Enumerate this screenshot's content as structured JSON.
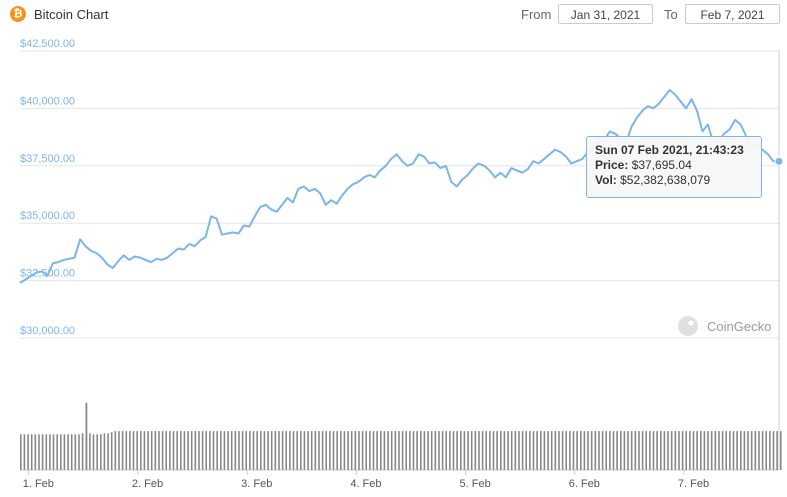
{
  "header": {
    "title": "Bitcoin Chart",
    "from_label": "From",
    "from_value": "Jan 31, 2021",
    "to_label": "To",
    "to_value": "Feb 7, 2021"
  },
  "tooltip": {
    "date": "Sun 07 Feb 2021, 21:43:23",
    "price_label": "Price:",
    "price_value": "$37,695.04",
    "vol_label": "Vol:",
    "vol_value": "$52,382,638,079"
  },
  "watermark": "CoinGecko",
  "colors": {
    "line": "#7cb5ec",
    "volume": "#888888",
    "grid": "#e6e6e6",
    "brand": "#f7931a"
  },
  "chart_data": [
    {
      "type": "line",
      "title": "Bitcoin Chart",
      "y_tick_labels": [
        "$30,000.00",
        "$32,500.00",
        "$35,000.00",
        "$37,500.00",
        "$40,000.00",
        "$42,500.00"
      ],
      "y_ticks": [
        30000,
        32500,
        35000,
        37500,
        40000,
        42500
      ],
      "ylim": [
        30000,
        42500
      ],
      "x_tick_labels": [
        "1. Feb",
        "2. Feb",
        "3. Feb",
        "4. Feb",
        "5. Feb",
        "6. Feb",
        "7. Feb"
      ],
      "x_ticks": [
        1,
        2,
        3,
        4,
        5,
        6,
        7
      ],
      "xlim": [
        0.92,
        7.88
      ],
      "grid": true,
      "series": [
        {
          "x": [
            0.92,
            0.97,
            1.02,
            1.07,
            1.12,
            1.17,
            1.22,
            1.27,
            1.32,
            1.37,
            1.42,
            1.47,
            1.52,
            1.57,
            1.62,
            1.67,
            1.72,
            1.77,
            1.82,
            1.87,
            1.92,
            1.97,
            2.02,
            2.07,
            2.12,
            2.17,
            2.22,
            2.27,
            2.32,
            2.37,
            2.42,
            2.47,
            2.52,
            2.57,
            2.62,
            2.67,
            2.72,
            2.77,
            2.82,
            2.87,
            2.92,
            2.97,
            3.02,
            3.07,
            3.12,
            3.17,
            3.22,
            3.27,
            3.32,
            3.37,
            3.42,
            3.47,
            3.52,
            3.57,
            3.62,
            3.67,
            3.72,
            3.77,
            3.82,
            3.87,
            3.92,
            3.97,
            4.02,
            4.07,
            4.12,
            4.17,
            4.22,
            4.27,
            4.32,
            4.37,
            4.42,
            4.47,
            4.52,
            4.57,
            4.62,
            4.67,
            4.72,
            4.77,
            4.82,
            4.87,
            4.92,
            4.97,
            5.02,
            5.07,
            5.12,
            5.17,
            5.22,
            5.27,
            5.32,
            5.37,
            5.42,
            5.47,
            5.52,
            5.57,
            5.62,
            5.67,
            5.72,
            5.77,
            5.82,
            5.87,
            5.92,
            5.97,
            6.02,
            6.07,
            6.12,
            6.17,
            6.22,
            6.27,
            6.32,
            6.37,
            6.42,
            6.47,
            6.52,
            6.57,
            6.62,
            6.67,
            6.72,
            6.77,
            6.82,
            6.87,
            6.92,
            6.97,
            7.02,
            7.07,
            7.12,
            7.17,
            7.22,
            7.27,
            7.32,
            7.37,
            7.42,
            7.47,
            7.52,
            7.57,
            7.62,
            7.67,
            7.72,
            7.77,
            7.82,
            7.88
          ],
          "y": [
            32400,
            32550,
            32700,
            32850,
            32900,
            32700,
            33250,
            33300,
            33400,
            33450,
            33500,
            34300,
            34000,
            33800,
            33700,
            33500,
            33200,
            33050,
            33350,
            33600,
            33400,
            33550,
            33500,
            33400,
            33300,
            33450,
            33400,
            33500,
            33700,
            33900,
            33850,
            34100,
            34000,
            34250,
            34400,
            35300,
            35200,
            34500,
            34550,
            34600,
            34550,
            34900,
            34850,
            35300,
            35700,
            35800,
            35600,
            35500,
            35800,
            36100,
            35900,
            36500,
            36600,
            36400,
            36500,
            36300,
            35800,
            36000,
            35850,
            36200,
            36500,
            36700,
            36800,
            37000,
            37100,
            37000,
            37300,
            37500,
            37800,
            38000,
            37700,
            37500,
            37600,
            38000,
            37900,
            37600,
            37650,
            37400,
            37500,
            36800,
            36600,
            36900,
            37100,
            37400,
            37600,
            37500,
            37300,
            37000,
            37200,
            37000,
            37400,
            37300,
            37200,
            37350,
            37700,
            37600,
            37800,
            38000,
            38200,
            38100,
            37900,
            37600,
            37700,
            37800,
            38100,
            38300,
            38500,
            38600,
            39000,
            38900,
            38700,
            38500,
            39200,
            39600,
            39900,
            40100,
            40000,
            40200,
            40500,
            40800,
            40600,
            40300,
            40000,
            40400,
            39900,
            39000,
            39300,
            38500,
            38600,
            38900,
            39100,
            39500,
            39300,
            38800,
            38300,
            38400,
            38200,
            38000,
            37700,
            37695
          ]
        }
      ]
    },
    {
      "type": "bar",
      "title": "",
      "note": "volume bars",
      "x_start": 0.92,
      "x_step": 0.0333,
      "values": [
        0.34,
        0.34,
        0.34,
        0.34,
        0.34,
        0.34,
        0.34,
        0.34,
        0.34,
        0.34,
        0.34,
        0.34,
        0.34,
        0.34,
        0.34,
        0.34,
        0.34,
        0.35,
        0.34,
        0.35,
        0.34,
        0.34,
        0.34,
        0.35,
        0.35,
        0.36,
        0.37,
        0.37,
        0.37,
        0.37,
        0.37,
        0.37,
        0.37,
        0.37,
        0.37,
        0.37,
        0.37,
        0.37,
        0.37,
        0.37,
        0.37,
        0.37,
        0.37,
        0.37,
        0.37,
        0.37,
        0.37,
        0.37,
        0.37,
        0.37,
        0.37,
        0.37,
        0.37,
        0.37,
        0.37,
        0.37,
        0.37,
        0.37,
        0.37,
        0.37,
        0.37,
        0.37,
        0.37,
        0.37,
        0.37,
        0.37,
        0.37,
        0.37,
        0.37,
        0.37,
        0.37,
        0.37,
        0.37,
        0.37,
        0.37,
        0.37,
        0.37,
        0.37,
        0.37,
        0.37,
        0.37,
        0.37,
        0.37,
        0.37,
        0.37,
        0.37,
        0.37,
        0.37,
        0.37,
        0.37,
        0.37,
        0.37,
        0.37,
        0.37,
        0.37,
        0.37,
        0.37,
        0.37,
        0.37,
        0.37,
        0.37,
        0.37,
        0.37,
        0.37,
        0.37,
        0.37,
        0.37,
        0.37,
        0.37,
        0.37,
        0.37,
        0.37,
        0.37,
        0.37,
        0.37,
        0.37,
        0.37,
        0.37,
        0.37,
        0.37,
        0.37,
        0.37,
        0.37,
        0.37,
        0.37,
        0.37,
        0.37,
        0.37,
        0.37,
        0.37,
        0.37,
        0.37,
        0.37,
        0.37,
        0.37,
        0.37,
        0.37,
        0.37,
        0.37,
        0.37,
        0.37,
        0.37,
        0.37,
        0.37,
        0.37,
        0.37,
        0.37,
        0.37,
        0.37,
        0.37,
        0.37,
        0.37,
        0.37,
        0.37,
        0.37,
        0.37,
        0.37,
        0.37,
        0.37,
        0.37,
        0.37,
        0.37,
        0.37,
        0.37,
        0.37,
        0.37,
        0.37,
        0.37,
        0.37,
        0.37,
        0.37,
        0.37,
        0.37,
        0.37,
        0.37,
        0.37,
        0.37,
        0.37,
        0.37,
        0.37,
        0.37,
        0.37,
        0.37,
        0.37,
        0.37,
        0.37,
        0.37,
        0.37,
        0.37,
        0.37,
        0.37,
        0.37,
        0.37,
        0.37,
        0.37,
        0.37,
        0.37,
        0.37,
        0.37,
        0.37,
        0.37,
        0.37,
        0.37,
        0.37,
        0.37,
        0.37,
        0.37,
        0.37,
        0.37,
        0.37,
        0.37,
        0.37
      ],
      "spike": {
        "x": 1.52,
        "value": 0.64
      },
      "ylim": [
        0,
        1
      ]
    }
  ]
}
